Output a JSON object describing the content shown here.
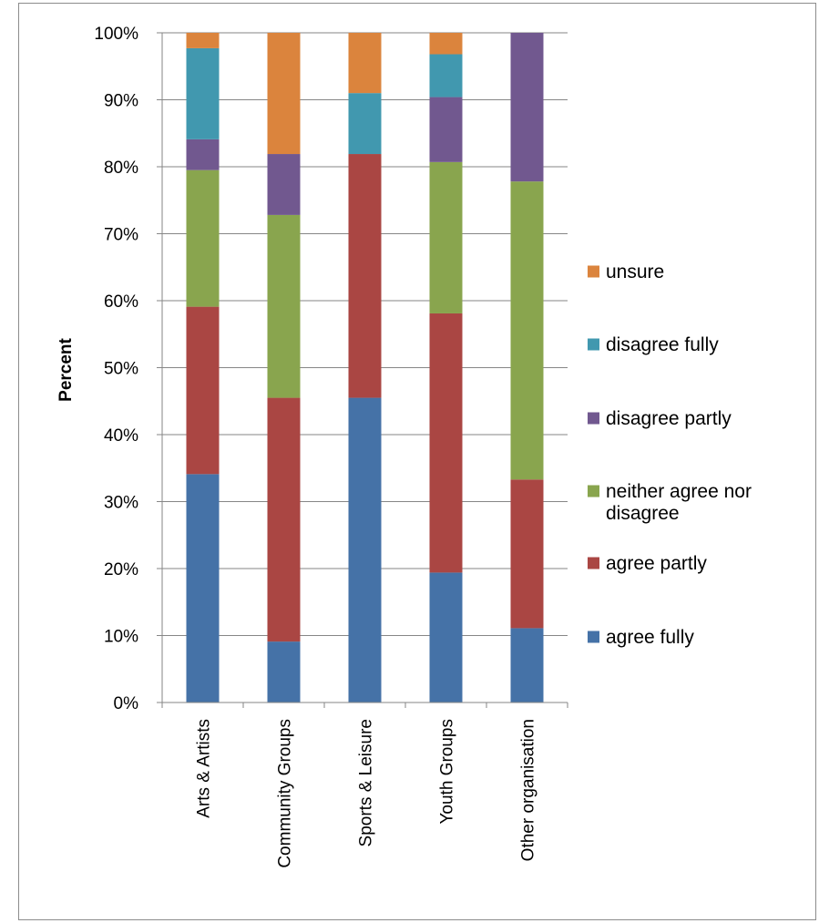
{
  "chart_data": {
    "type": "bar",
    "stacked": "percent",
    "ylabel": "Percent",
    "xlabel": "",
    "ylim": [
      0,
      100
    ],
    "y_ticks": [
      "0%",
      "10%",
      "20%",
      "30%",
      "40%",
      "50%",
      "60%",
      "70%",
      "80%",
      "90%",
      "100%"
    ],
    "grid": true,
    "legend_position": "right",
    "categories": [
      "Arts & Artists",
      "Community Groups",
      "Sports & Leisure",
      "Youth Groups",
      "Other organisation"
    ],
    "series": [
      {
        "name": "agree fully",
        "color": "#4572a7",
        "values": [
          34.1,
          9.1,
          45.5,
          19.4,
          11.1
        ]
      },
      {
        "name": "agree partly",
        "color": "#aa4643",
        "values": [
          25.0,
          36.4,
          36.4,
          38.7,
          22.2
        ]
      },
      {
        "name": "neither agree nor disagree",
        "color": "#89a54e",
        "values": [
          20.4,
          27.3,
          0,
          22.6,
          44.5
        ]
      },
      {
        "name": "disagree partly",
        "color": "#71588f",
        "values": [
          4.6,
          9.1,
          0,
          9.7,
          22.2
        ]
      },
      {
        "name": "disagree fully",
        "color": "#4198af",
        "values": [
          13.6,
          0,
          9.1,
          6.4,
          0
        ]
      },
      {
        "name": "unsure",
        "color": "#db843d",
        "values": [
          2.3,
          18.1,
          9.0,
          3.2,
          0
        ]
      }
    ]
  }
}
